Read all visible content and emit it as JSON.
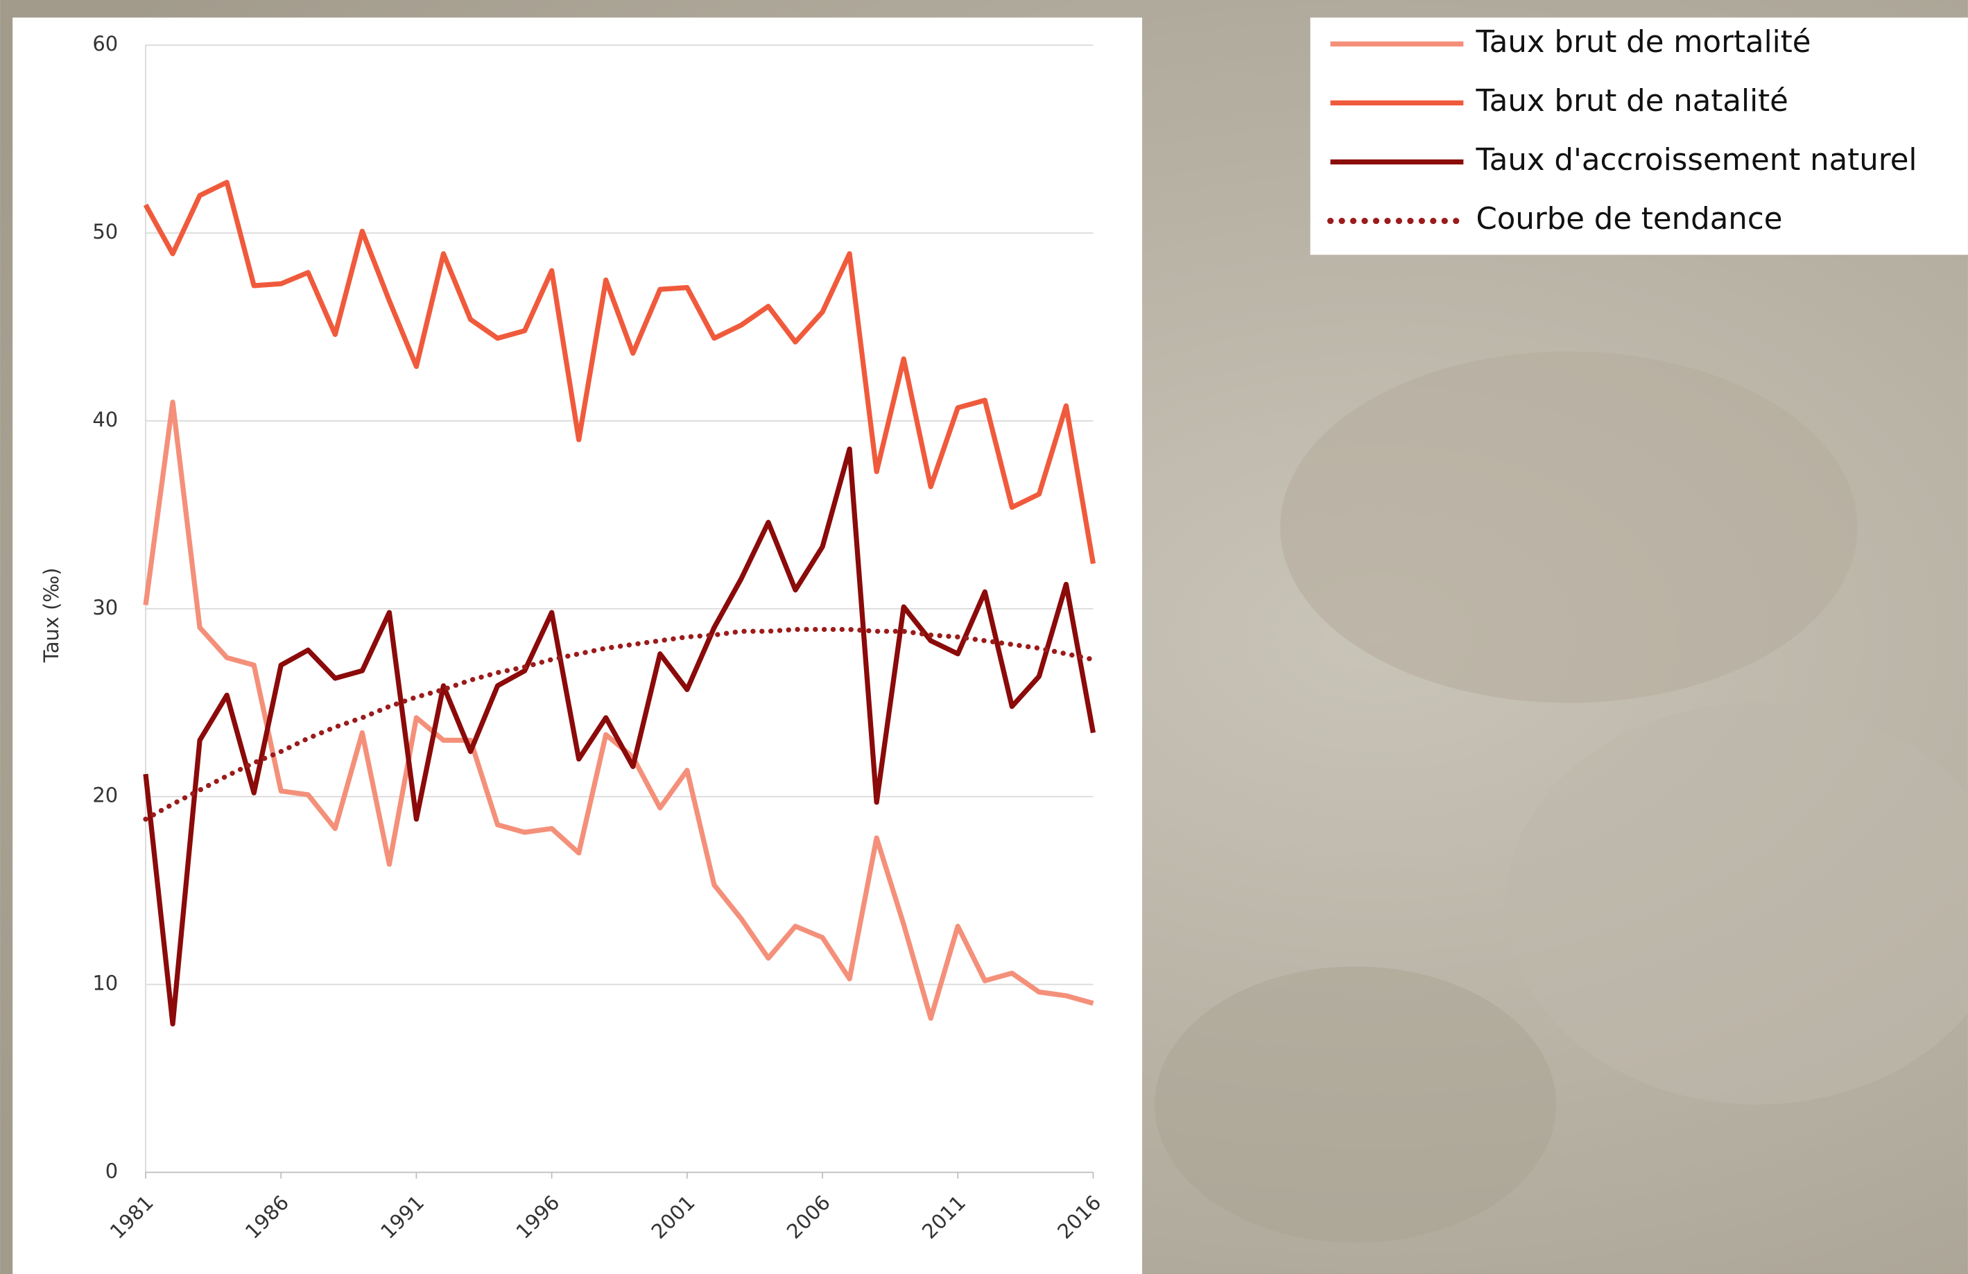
{
  "chart_data": {
    "type": "line",
    "ylabel": "Taux (‰)",
    "x": [
      1981,
      1982,
      1983,
      1984,
      1985,
      1986,
      1987,
      1988,
      1989,
      1990,
      1991,
      1992,
      1993,
      1994,
      1995,
      1996,
      1997,
      1998,
      1999,
      2000,
      2001,
      2002,
      2003,
      2004,
      2005,
      2006,
      2007,
      2008,
      2009,
      2010,
      2011,
      2012,
      2013,
      2014,
      2015,
      2016
    ],
    "xlim": [
      1981,
      2016
    ],
    "xticks": [
      1981,
      1986,
      1991,
      1996,
      2001,
      2006,
      2011,
      2016
    ],
    "ylim": [
      0,
      60
    ],
    "yticks": [
      0,
      10,
      20,
      30,
      40,
      50,
      60
    ],
    "grid": true,
    "legend": "outside-right",
    "series": [
      {
        "name": "Taux brut de mortalité",
        "color": "#f4907a",
        "style": "solid",
        "values": [
          30.2,
          41,
          29,
          27.4,
          27,
          20.3,
          20.1,
          18.3,
          23.4,
          16.4,
          24.2,
          23,
          23,
          18.5,
          18.1,
          18.3,
          17,
          23.3,
          22.1,
          19.4,
          21.4,
          15.3,
          13.5,
          11.4,
          13.1,
          12.5,
          10.3,
          17.8,
          13.2,
          8.2,
          13.1,
          10.2,
          10.6,
          9.6,
          9.4,
          9.0
        ]
      },
      {
        "name": "Taux brut de natalité",
        "color": "#f05a3c",
        "style": "solid",
        "values": [
          51.5,
          48.9,
          52,
          52.7,
          47.2,
          47.3,
          47.9,
          44.6,
          50.1,
          46.4,
          42.9,
          48.9,
          45.4,
          44.4,
          44.8,
          48,
          39,
          47.5,
          43.6,
          47,
          47.1,
          44.4,
          45.1,
          46.1,
          44.2,
          45.8,
          48.9,
          37.3,
          43.3,
          36.5,
          40.7,
          41.1,
          35.4,
          36.1,
          40.8,
          32.4
        ]
      },
      {
        "name": "Taux d'accroissement naturel",
        "color": "#8b0a0a",
        "style": "solid",
        "values": [
          21.2,
          7.9,
          23,
          25.4,
          20.2,
          27,
          27.8,
          26.3,
          26.7,
          29.8,
          18.8,
          25.9,
          22.4,
          25.9,
          26.7,
          29.8,
          22,
          24.2,
          21.6,
          27.6,
          25.7,
          29,
          31.6,
          34.6,
          31,
          33.3,
          38.5,
          19.7,
          30.1,
          28.3,
          27.6,
          30.9,
          24.8,
          26.4,
          31.3,
          23.4
        ]
      },
      {
        "name": "Courbe de tendance",
        "color": "#9b1b1b",
        "style": "dotted",
        "values": [
          18.8,
          19.6,
          20.35,
          21.1,
          21.8,
          22.4,
          23.1,
          23.7,
          24.2,
          24.8,
          25.3,
          25.7,
          26.2,
          26.6,
          26.9,
          27.3,
          27.6,
          27.9,
          28.1,
          28.3,
          28.5,
          28.6,
          28.8,
          28.8,
          28.9,
          28.9,
          28.9,
          28.8,
          28.8,
          28.6,
          28.5,
          28.3,
          28.1,
          27.9,
          27.6,
          27.3
        ]
      }
    ]
  }
}
